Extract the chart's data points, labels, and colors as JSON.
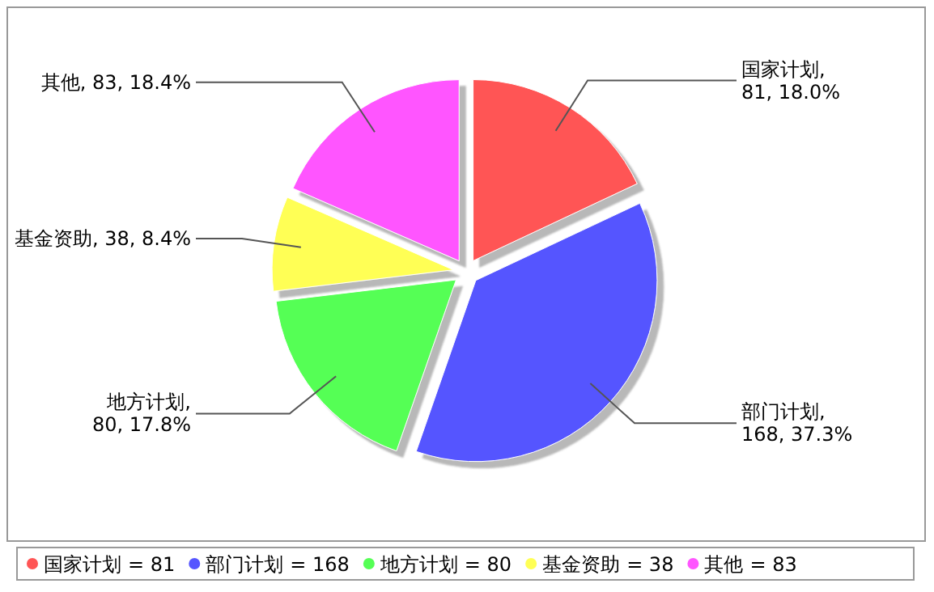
{
  "chart_data": {
    "type": "pie",
    "categories": [
      "国家计划",
      "部门计划",
      "地方计划",
      "基金资助",
      "其他"
    ],
    "values": [
      81,
      168,
      80,
      38,
      83
    ],
    "colors": [
      "#ff5555",
      "#5555ff",
      "#55ff55",
      "#ffff55",
      "#ff55ff"
    ],
    "value_labels": [
      "国家计划,\n81, 18.0%",
      "部门计划,\n168, 37.3%",
      "地方计划,\n80, 17.8%",
      "基金资助, 38, 8.4%",
      "其他, 83, 18.4%"
    ],
    "annotations": [
      "= 81",
      "= 168",
      "= 80",
      "= 38",
      "= 83"
    ],
    "legend": "bottom"
  }
}
